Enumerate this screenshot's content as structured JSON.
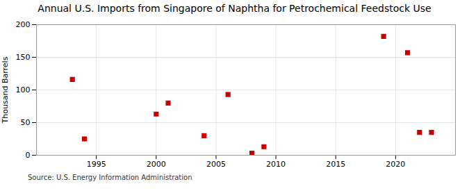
{
  "chart_data": {
    "type": "scatter",
    "title": "Annual U.S. Imports from Singapore of Naphtha for Petrochemical Feedstock Use",
    "ylabel": "Thousand Barrels",
    "annotations": [
      "Source: U.S. Energy Information Administration"
    ],
    "x": [
      1993,
      1994,
      2000,
      2001,
      2004,
      2006,
      2008,
      2009,
      2019,
      2021,
      2022,
      2023
    ],
    "values": [
      116,
      25,
      63,
      80,
      30,
      93,
      3,
      13,
      182,
      157,
      35,
      35
    ],
    "color": "#cc0000",
    "marker": "square",
    "xlim": [
      1990,
      2025
    ],
    "xticks": [
      1995,
      2000,
      2005,
      2010,
      2015,
      2020
    ],
    "ylim": [
      0,
      200
    ],
    "yticks": [
      0,
      50,
      100,
      150,
      200
    ],
    "grid": true
  }
}
